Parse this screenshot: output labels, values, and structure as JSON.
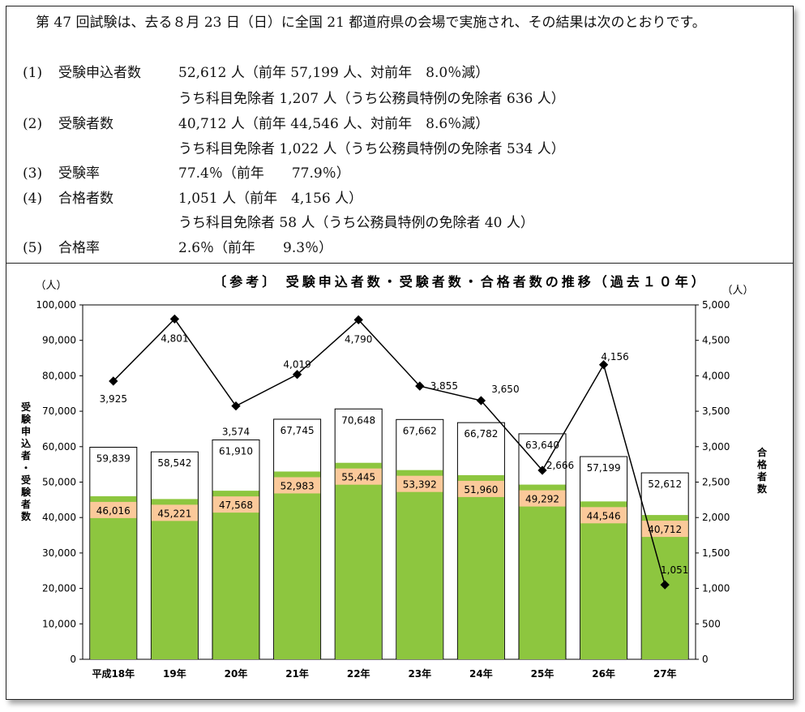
{
  "summary": {
    "intro": "第 47 回試験は、去る８月 23 日（日）に全国 21 都道府県の会場で実施され、その結果は次のとおりです。",
    "items": [
      {
        "num": "(1)",
        "label": "受験申込者数",
        "value": "52,612 人（前年 57,199 人、対前年　8.0％減）",
        "sub": "うち科目免除者 1,207 人（うち公務員特例の免除者 636 人）"
      },
      {
        "num": "(2)",
        "label": "受験者数",
        "value": "40,712 人（前年 44,546 人、対前年　8.6％減）",
        "sub": "うち科目免除者 1,022 人（うち公務員特例の免除者 534 人）"
      },
      {
        "num": "(3)",
        "label": "受験率",
        "value": "77.4％（前年　　77.9％）",
        "sub": ""
      },
      {
        "num": "(4)",
        "label": "合格者数",
        "value": "1,051 人（前年　4,156 人）",
        "sub": "うち科目免除者 58 人（うち公務員特例の免除者 40 人）"
      },
      {
        "num": "(5)",
        "label": "合格率",
        "value": "2.6％（前年　　9.3％）",
        "sub": ""
      }
    ]
  },
  "chart_data": {
    "type": "bar",
    "title": "〔参考〕 受験申込者数・受験者数・合格者数の推移（過去１０年）",
    "left_unit": "（人）",
    "right_unit": "（人）",
    "ylabel": "受験申込者・受験者数",
    "y2label": "合格者数",
    "categories": [
      "平成18年",
      "19年",
      "20年",
      "21年",
      "22年",
      "23年",
      "24年",
      "25年",
      "26年",
      "27年"
    ],
    "ylim": [
      0,
      100000
    ],
    "y2lim": [
      0,
      5000
    ],
    "yticks": [
      "0",
      "10,000",
      "20,000",
      "30,000",
      "40,000",
      "50,000",
      "60,000",
      "70,000",
      "80,000",
      "90,000",
      "100,000"
    ],
    "y2ticks": [
      "0",
      "500",
      "1,000",
      "1,500",
      "2,000",
      "2,500",
      "3,000",
      "3,500",
      "4,000",
      "4,500",
      "5,000"
    ],
    "series": [
      {
        "values": [
          59839,
          58542,
          61910,
          67745,
          70648,
          67662,
          66782,
          63640,
          57199,
          52612
        ],
        "labels": [
          "59,839",
          "58,542",
          "61,910",
          "67,745",
          "70,648",
          "67,662",
          "66,782",
          "63,640",
          "57,199",
          "52,612"
        ],
        "color": "#ffffff"
      },
      {
        "values": [
          46016,
          45221,
          47568,
          52983,
          55445,
          53392,
          51960,
          49292,
          44546,
          40712
        ],
        "labels": [
          "46,016",
          "45,221",
          "47,568",
          "52,983",
          "55,445",
          "53,392",
          "51,960",
          "49,292",
          "44,546",
          "40,712"
        ],
        "color": "#8dc63f",
        "label_bg": "#fbc99a"
      },
      {
        "axis": "right",
        "type": "line",
        "values": [
          3925,
          4801,
          3574,
          4019,
          4790,
          3855,
          3650,
          2666,
          4156,
          1051
        ],
        "labels": [
          "3,925",
          "4,801",
          "3,574",
          "4,019",
          "4,790",
          "3,855",
          "3,650",
          "2,666",
          "4,156",
          "1,051"
        ],
        "color": "#000000"
      }
    ],
    "grid": false
  }
}
